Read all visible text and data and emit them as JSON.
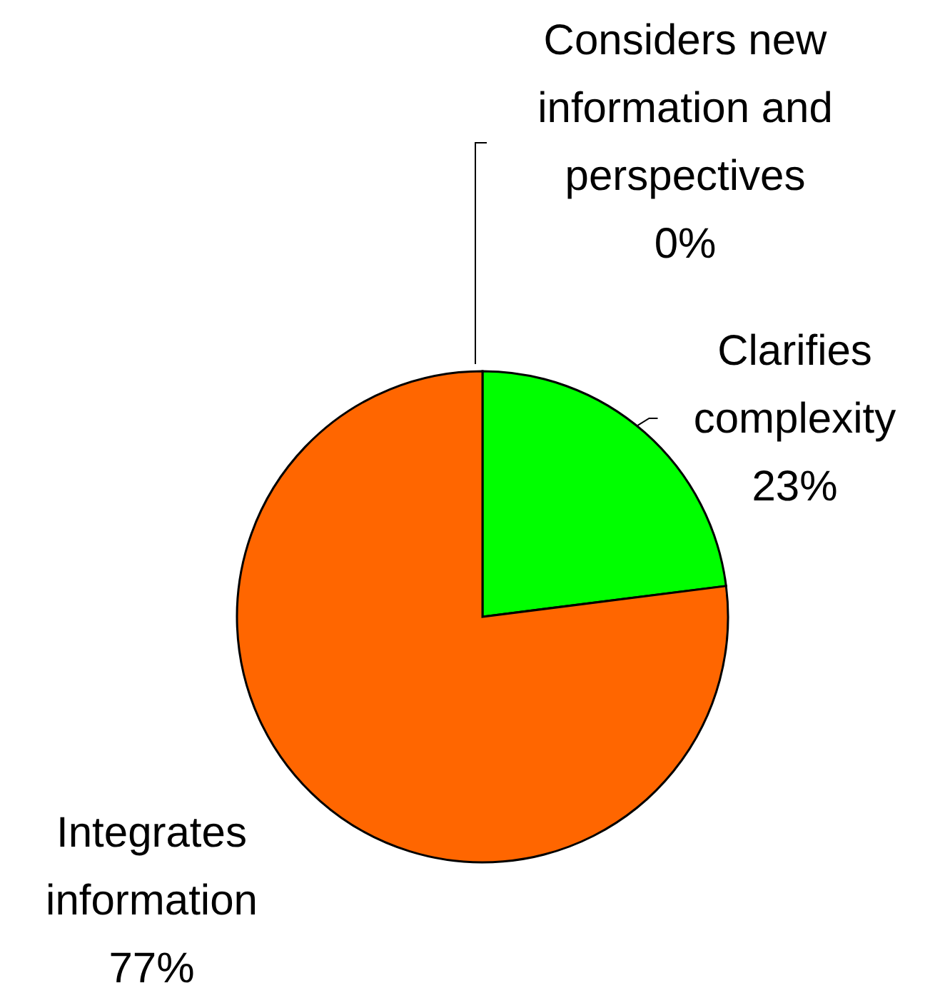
{
  "chart_data": {
    "type": "pie",
    "categories": [
      "Considers new information and perspectives",
      "Clarifies complexity",
      "Integrates information"
    ],
    "values": [
      0,
      23,
      77
    ],
    "value_labels": [
      "0%",
      "23%",
      "77%"
    ],
    "colors": [
      "#3366ff",
      "#00ff00",
      "#ff6600"
    ]
  }
}
